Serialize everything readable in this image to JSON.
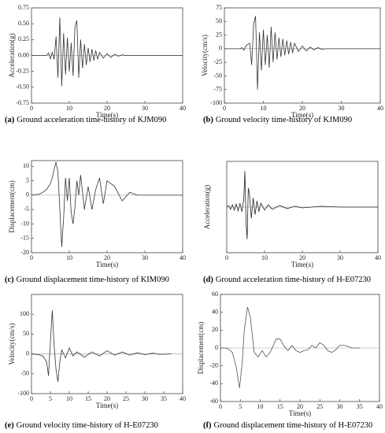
{
  "chart_data": [
    {
      "type": "line",
      "caption_label": "(a)",
      "caption": "Ground acceleration time-history of KJM090",
      "xlabel": "Time(s)",
      "ylabel": "Acceleration(g)",
      "xlim": [
        0,
        40
      ],
      "xticks": [
        0,
        10,
        20,
        30,
        40
      ],
      "ylim": [
        -0.75,
        0.75
      ],
      "yticks": [
        -0.75,
        {
          "value": -0.5,
          "label": "-0.50"
        },
        -0.25,
        {
          "value": 0,
          "label": "0.00"
        },
        0.25,
        {
          "value": 0.5,
          "label": "0.50"
        },
        0.75
      ],
      "x": [
        0,
        4,
        4.5,
        5,
        5.5,
        6,
        6.5,
        7,
        7.5,
        8,
        8.5,
        9,
        9.5,
        10,
        10.5,
        11,
        11.5,
        12,
        12.5,
        13,
        13.5,
        14,
        14.5,
        15,
        15.5,
        16,
        16.5,
        17,
        17.5,
        18,
        19,
        20,
        21,
        22,
        23,
        24,
        25,
        26,
        40
      ],
      "values": [
        0,
        0,
        0.04,
        -0.05,
        0.05,
        -0.06,
        0.3,
        -0.35,
        0.6,
        -0.48,
        0.35,
        -0.3,
        0.28,
        -0.25,
        0.2,
        -0.32,
        0.45,
        0.55,
        -0.35,
        0.25,
        -0.2,
        0.18,
        -0.15,
        0.12,
        -0.1,
        0.1,
        -0.08,
        0.08,
        -0.06,
        0.05,
        -0.04,
        0.03,
        -0.03,
        0.02,
        -0.01,
        0.01,
        0,
        0,
        0
      ],
      "color": "#333333"
    },
    {
      "type": "line",
      "caption_label": "(b)",
      "caption": "Ground velocity time-history of KJM090",
      "xlabel": "Time(s)",
      "ylabel": "Velocity(cm/s)",
      "xlim": [
        0,
        40
      ],
      "xticks": [
        0,
        10,
        20,
        30,
        40
      ],
      "ylim": [
        -100,
        75
      ],
      "yticks": [
        -100,
        -75,
        -50,
        -25,
        0,
        25,
        50,
        75
      ],
      "x": [
        0,
        4,
        4.5,
        5,
        5.5,
        6,
        6.5,
        7,
        7.5,
        8,
        8.5,
        9,
        9.5,
        10,
        10.5,
        11,
        11.5,
        12,
        12.5,
        13,
        13.5,
        14,
        14.5,
        15,
        15.5,
        16,
        16.5,
        17,
        17.5,
        18,
        19,
        20,
        21,
        22,
        23,
        24,
        25,
        26,
        40
      ],
      "values": [
        0,
        0,
        2,
        -3,
        5,
        8,
        10,
        -30,
        45,
        60,
        -75,
        30,
        -40,
        35,
        -30,
        25,
        -35,
        40,
        -25,
        30,
        -20,
        20,
        -15,
        18,
        -12,
        15,
        -10,
        12,
        -8,
        10,
        -5,
        5,
        -4,
        3,
        -2,
        2,
        -1,
        0,
        0
      ],
      "color": "#333333"
    },
    {
      "type": "line",
      "caption_label": "(c)",
      "caption": "Ground displacement time-history of KIM090",
      "xlabel": "Time(s)",
      "ylabel": "Displacement(cm)",
      "xlim": [
        0,
        40
      ],
      "xticks": [
        0,
        10,
        20,
        30,
        40
      ],
      "ylim": [
        -20,
        12
      ],
      "yticks": [
        -20,
        -15,
        -10,
        -5,
        0,
        5,
        10
      ],
      "x": [
        0,
        2,
        3,
        4,
        5,
        5.5,
        6,
        6.5,
        7,
        7.5,
        8,
        8.5,
        9,
        9.5,
        10,
        10.5,
        11,
        11.5,
        12,
        12.5,
        13,
        14,
        15,
        16,
        17,
        18,
        19,
        20,
        22,
        24,
        26,
        28,
        30,
        35,
        40
      ],
      "values": [
        0,
        0.3,
        1,
        2,
        4,
        6,
        9,
        11.5,
        8,
        -5,
        -18,
        -8,
        6,
        -2,
        6,
        -6,
        -10,
        -4,
        5,
        0,
        7,
        -5,
        3,
        -5,
        2,
        6,
        -3,
        5,
        3,
        -2,
        1,
        0,
        0,
        0,
        0
      ],
      "color": "#333333"
    },
    {
      "type": "line",
      "caption_label": "(d)",
      "caption": "Ground acceleration time-history of H-E07230",
      "xlabel": "Time(s)",
      "ylabel": "Acceleration(g)",
      "xlim": [
        0,
        40
      ],
      "xticks": [
        0,
        10,
        20,
        30,
        40
      ],
      "ylim": [
        -0.6,
        0.6
      ],
      "x": [
        0,
        0.5,
        1,
        1.5,
        2,
        2.5,
        3,
        3.5,
        4,
        4.5,
        4.8,
        5.1,
        5.4,
        5.7,
        6,
        6.5,
        7,
        7.5,
        8,
        8.5,
        9,
        10,
        11,
        12,
        14,
        16,
        18,
        20,
        25,
        30,
        35,
        40
      ],
      "values": [
        0,
        0.02,
        -0.03,
        0.03,
        -0.04,
        0.04,
        -0.05,
        0.05,
        -0.06,
        0.1,
        0.47,
        -0.2,
        -0.42,
        0.25,
        0.18,
        -0.15,
        0.12,
        -0.1,
        0.08,
        -0.06,
        0.05,
        -0.04,
        0.03,
        -0.03,
        0.02,
        -0.02,
        0.01,
        -0.01,
        0.01,
        0,
        0,
        0
      ],
      "color": "#222222"
    },
    {
      "type": "line",
      "caption_label": "(e)",
      "caption": "Ground velocity time-history of H-E07230",
      "xlabel": "Time(s)",
      "ylabel": "Velocity(cm/s)",
      "xlim": [
        0,
        40
      ],
      "xticks": [
        0,
        5,
        10,
        15,
        20,
        25,
        30,
        35,
        40
      ],
      "ylim": [
        -100,
        150
      ],
      "yticks": [
        -100,
        -50,
        0,
        50,
        100
      ],
      "x": [
        0,
        2,
        3,
        4,
        4.5,
        5,
        5.5,
        6,
        6.5,
        7,
        7.5,
        8,
        9,
        10,
        11,
        12,
        14,
        16,
        18,
        20,
        22,
        24,
        26,
        28,
        30,
        32,
        34,
        37
      ],
      "values": [
        0,
        -2,
        -5,
        -20,
        -55,
        30,
        110,
        20,
        -40,
        -70,
        -20,
        10,
        -10,
        15,
        -5,
        5,
        -8,
        5,
        -5,
        8,
        -3,
        5,
        -3,
        3,
        -2,
        2,
        -1,
        0
      ],
      "color": "#333333"
    },
    {
      "type": "line",
      "caption_label": "(f)",
      "caption": "Ground displacement time-history of H-E07230",
      "xlabel": "Time(s)",
      "ylabel": "Displacement(cm)",
      "xlim": [
        0,
        40
      ],
      "xticks": [
        0,
        5,
        10,
        15,
        20,
        25,
        30,
        35,
        40
      ],
      "ylim": [
        -60,
        60
      ],
      "yticks": [
        -60,
        -40,
        -20,
        0,
        20,
        40,
        60
      ],
      "x": [
        0,
        1,
        2,
        3,
        4,
        4.8,
        5.5,
        6,
        6.8,
        7.5,
        8.5,
        9.5,
        10.5,
        11.5,
        12.5,
        14,
        15,
        16,
        17,
        18,
        19,
        20,
        21,
        22,
        23,
        24,
        25,
        26,
        27,
        28,
        29,
        30,
        31,
        32,
        33,
        34,
        35
      ],
      "values": [
        0,
        0,
        -1,
        -5,
        -22,
        -45,
        -15,
        20,
        46,
        35,
        -5,
        -10,
        -3,
        -10,
        -5,
        10,
        10,
        2,
        -3,
        3,
        -3,
        -5,
        -3,
        -2,
        3,
        0,
        6,
        3,
        -3,
        -5,
        -2,
        3,
        3,
        2,
        0,
        0,
        0
      ],
      "color": "#555555"
    }
  ]
}
